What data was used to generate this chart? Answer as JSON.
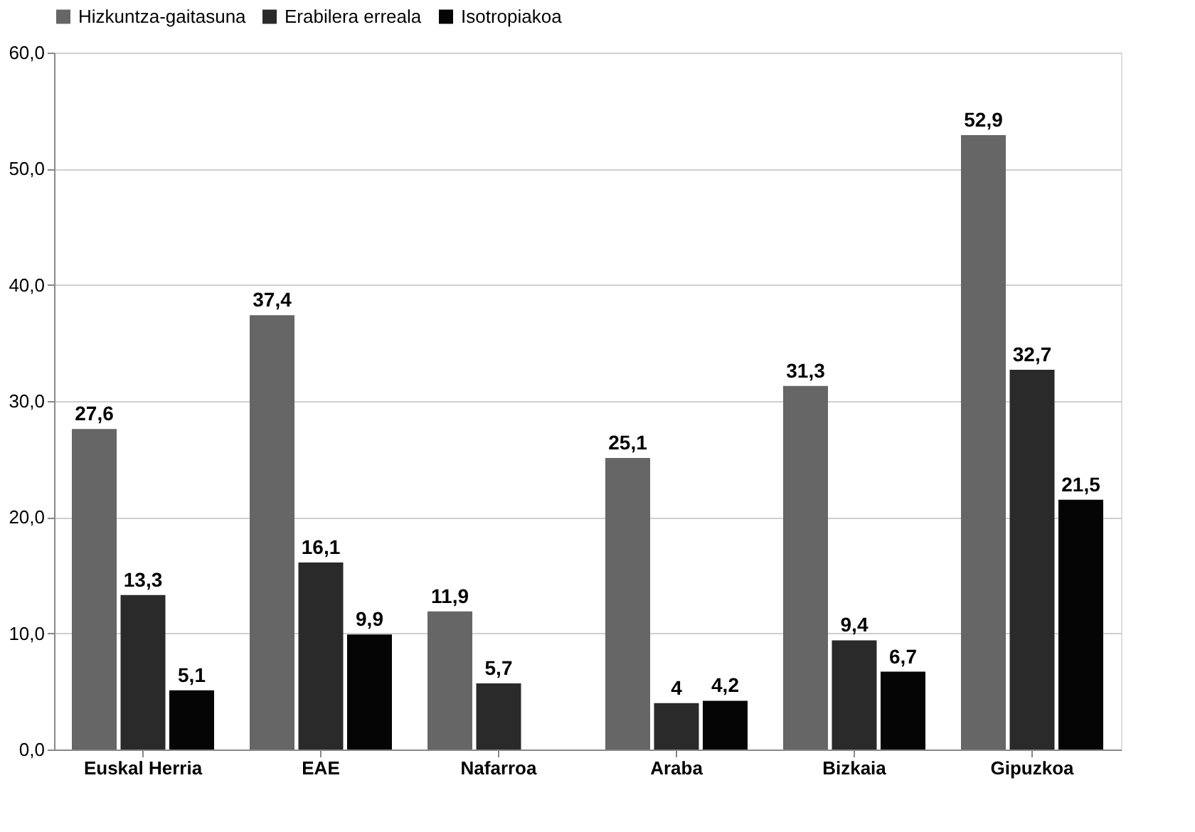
{
  "chart_data": {
    "type": "bar",
    "categories": [
      "Euskal Herria",
      "EAE",
      "Nafarroa",
      "Araba",
      "Bizkaia",
      "Gipuzkoa"
    ],
    "series": [
      {
        "name": "Hizkuntza-gaitasuna",
        "color": "#666666",
        "values": [
          27.6,
          37.4,
          11.9,
          25.1,
          31.3,
          52.9
        ],
        "value_labels": [
          "27,6",
          "37,4",
          "11,9",
          "25,1",
          "31,3",
          "52,9"
        ]
      },
      {
        "name": "Erabilera erreala",
        "color": "#2a2a2a",
        "values": [
          13.3,
          16.1,
          5.7,
          4,
          9.4,
          32.7
        ],
        "value_labels": [
          "13,3",
          "16,1",
          "5,7",
          "4",
          "9,4",
          "32,7"
        ]
      },
      {
        "name": "Isotropiakoa",
        "color": "#050505",
        "values": [
          5.1,
          9.9,
          null,
          4.2,
          6.7,
          21.5
        ],
        "value_labels": [
          "5,1",
          "9,9",
          null,
          "4,2",
          "6,7",
          "21,5"
        ]
      }
    ],
    "ylim": [
      0,
      60
    ],
    "yticks": [
      {
        "value": 0,
        "label": "0,0"
      },
      {
        "value": 10,
        "label": "10,0"
      },
      {
        "value": 20,
        "label": "20,0"
      },
      {
        "value": 30,
        "label": "30,0"
      },
      {
        "value": 40,
        "label": "40,0"
      },
      {
        "value": 50,
        "label": "50,0"
      },
      {
        "value": 60,
        "label": "60,0"
      }
    ],
    "grid": "y",
    "legend": "top"
  }
}
